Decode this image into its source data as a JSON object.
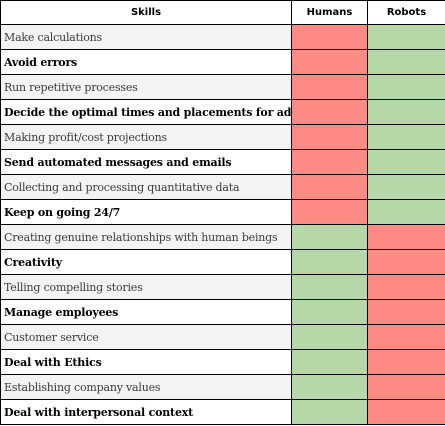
{
  "headers": {
    "skill": "Skills",
    "humans": "Humans",
    "robots": "Robots"
  },
  "colors": {
    "yes": "#b6d7a8",
    "no": "#fe8a84"
  },
  "rows": [
    {
      "skill": "Make calculations",
      "humans": "no",
      "robots": "yes"
    },
    {
      "skill": "Avoid errors",
      "humans": "no",
      "robots": "yes"
    },
    {
      "skill": "Run repetitive processes",
      "humans": "no",
      "robots": "yes"
    },
    {
      "skill": "Decide the optimal times and placements for ads",
      "humans": "no",
      "robots": "yes"
    },
    {
      "skill": "Making profit/cost projections",
      "humans": "no",
      "robots": "yes"
    },
    {
      "skill": "Send automated messages and emails",
      "humans": "no",
      "robots": "yes"
    },
    {
      "skill": "Collecting and processing quantitative data",
      "humans": "no",
      "robots": "yes"
    },
    {
      "skill": "Keep on going 24/7",
      "humans": "no",
      "robots": "yes"
    },
    {
      "skill": "Creating genuine relationships with human beings",
      "humans": "yes",
      "robots": "no"
    },
    {
      "skill": "Creativity",
      "humans": "yes",
      "robots": "no"
    },
    {
      "skill": "Telling compelling stories",
      "humans": "yes",
      "robots": "no"
    },
    {
      "skill": "Manage employees",
      "humans": "yes",
      "robots": "no"
    },
    {
      "skill": "Customer service",
      "humans": "yes",
      "robots": "no"
    },
    {
      "skill": "Deal with Ethics",
      "humans": "yes",
      "robots": "no"
    },
    {
      "skill": "Establishing company values",
      "humans": "yes",
      "robots": "no"
    },
    {
      "skill": "Deal with interpersonal context",
      "humans": "yes",
      "robots": "no"
    }
  ]
}
